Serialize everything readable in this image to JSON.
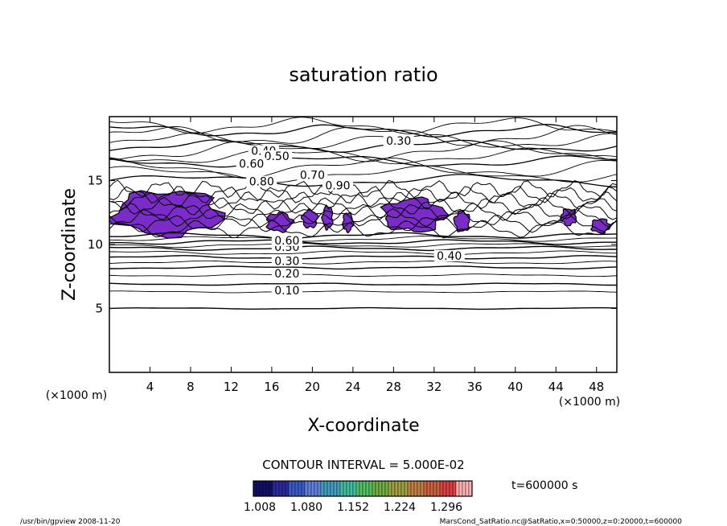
{
  "chart_data": {
    "type": "contour",
    "title": "saturation ratio",
    "xlabel": "X-coordinate",
    "ylabel": "Z-coordinate",
    "x_unit": "(×1000 m)",
    "x_unit_right": "(×1000 m)",
    "xlim": [
      0,
      50
    ],
    "ylim": [
      0,
      20
    ],
    "x_ticks": [
      4,
      8,
      12,
      16,
      20,
      24,
      28,
      32,
      36,
      40,
      44,
      48
    ],
    "y_ticks": [
      5,
      10,
      15
    ],
    "grid": false,
    "contour_interval_text": "CONTOUR INTERVAL = 5.000E-02",
    "time_text": "t=600000 s",
    "contour_levels_labeled": [
      {
        "value": "0.10",
        "x": 17.5,
        "z": 6.3
      },
      {
        "value": "0.20",
        "x": 17.5,
        "z": 7.6
      },
      {
        "value": "0.30",
        "x": 17.5,
        "z": 8.6
      },
      {
        "value": "0.40",
        "x": 33.5,
        "z": 9.0
      },
      {
        "value": "0.50",
        "x": 17.5,
        "z": 9.7
      },
      {
        "value": "0.60",
        "x": 17.5,
        "z": 10.2
      },
      {
        "value": "0.30",
        "x": 28.5,
        "z": 18.0
      },
      {
        "value": "0.40",
        "x": 15.2,
        "z": 17.2
      },
      {
        "value": "0.50",
        "x": 16.5,
        "z": 16.8
      },
      {
        "value": "0.60",
        "x": 14.0,
        "z": 16.2
      },
      {
        "value": "0.70",
        "x": 20.0,
        "z": 15.3
      },
      {
        "value": "0.80",
        "x": 15.0,
        "z": 14.8
      },
      {
        "value": "0.90",
        "x": 22.5,
        "z": 14.5
      }
    ],
    "supersaturated_regions": [
      {
        "x_range": [
          0.5,
          11
        ],
        "z_range": [
          10.7,
          14.2
        ]
      },
      {
        "x_range": [
          15.5,
          18
        ],
        "z_range": [
          11.0,
          12.5
        ]
      },
      {
        "x_range": [
          19,
          20.5
        ],
        "z_range": [
          11.3,
          12.7
        ]
      },
      {
        "x_range": [
          21,
          22
        ],
        "z_range": [
          11.2,
          13.0
        ]
      },
      {
        "x_range": [
          23,
          24
        ],
        "z_range": [
          11.0,
          12.5
        ]
      },
      {
        "x_range": [
          27,
          33
        ],
        "z_range": [
          11.0,
          13.6
        ]
      },
      {
        "x_range": [
          34,
          35.5
        ],
        "z_range": [
          11.0,
          12.6
        ]
      },
      {
        "x_range": [
          44.5,
          46
        ],
        "z_range": [
          11.5,
          12.8
        ]
      },
      {
        "x_range": [
          47.5,
          49.3
        ],
        "z_range": [
          10.9,
          12.0
        ]
      }
    ],
    "colorbar": {
      "ticks": [
        "1.008",
        "1.080",
        "1.152",
        "1.224",
        "1.296"
      ],
      "colors": [
        "#10106a",
        "#2a2aa0",
        "#3a5ad0",
        "#6080e0",
        "#40a0c0",
        "#40c0a0",
        "#50c060",
        "#70b040",
        "#a0a040",
        "#c08040",
        "#d06040",
        "#e04040",
        "#ffb0b0"
      ]
    },
    "fill_color": "#7a2bc8"
  },
  "footer": {
    "left": "/usr/bin/gpview   2008-11-20",
    "right": "MarsCond_SatRatio.nc@SatRatio,x=0:50000,z=0:20000,t=600000"
  }
}
